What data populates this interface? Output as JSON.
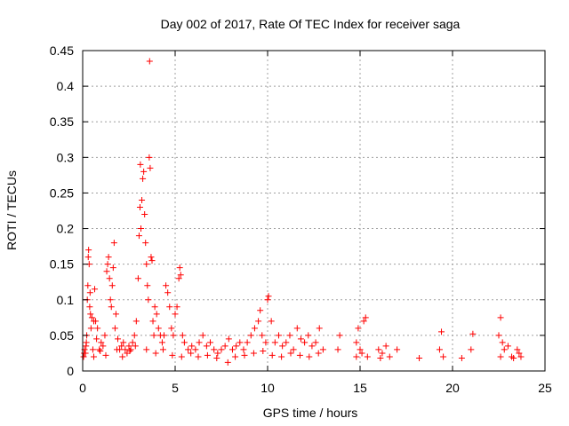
{
  "chart_data": {
    "type": "scatter",
    "title": "Day 002 of 2017, Rate Of TEC Index for receiver saga",
    "xlabel": "GPS time / hours",
    "ylabel": "ROTI / TECUs",
    "xlim": [
      0,
      25
    ],
    "ylim": [
      0,
      0.45
    ],
    "xticks": [
      0,
      5,
      10,
      15,
      20,
      25
    ],
    "yticks": [
      0,
      0.05,
      0.1,
      0.15,
      0.2,
      0.25,
      0.3,
      0.35,
      0.4,
      0.45
    ],
    "xtick_labels": [
      "0",
      "5",
      "10",
      "15",
      "20",
      "25"
    ],
    "ytick_labels": [
      "0",
      "0.05",
      "0.1",
      "0.15",
      "0.2",
      "0.25",
      "0.3",
      "0.35",
      "0.4",
      "0.45"
    ],
    "grid": true,
    "marker": "plus",
    "colors": {
      "series": "#ff0000",
      "grid": "#a0a0a0",
      "axes": "#000000"
    },
    "series": [
      {
        "values": [
          [
            0.05,
            0.02
          ],
          [
            0.1,
            0.03
          ],
          [
            0.15,
            0.025
          ],
          [
            0.2,
            0.04
          ],
          [
            0.22,
            0.05
          ],
          [
            0.25,
            0.1
          ],
          [
            0.28,
            0.12
          ],
          [
            0.3,
            0.16
          ],
          [
            0.32,
            0.17
          ],
          [
            0.35,
            0.15
          ],
          [
            0.38,
            0.09
          ],
          [
            0.4,
            0.11
          ],
          [
            0.42,
            0.08
          ],
          [
            0.45,
            0.06
          ],
          [
            0.5,
            0.075
          ],
          [
            0.55,
            0.03
          ],
          [
            0.6,
            0.07
          ],
          [
            0.65,
            0.115
          ],
          [
            0.7,
            0.07
          ],
          [
            0.75,
            0.045
          ],
          [
            0.8,
            0.06
          ],
          [
            0.9,
            0.03
          ],
          [
            1.0,
            0.04
          ],
          [
            1.1,
            0.035
          ],
          [
            1.2,
            0.05
          ],
          [
            1.3,
            0.14
          ],
          [
            1.35,
            0.15
          ],
          [
            1.4,
            0.16
          ],
          [
            1.45,
            0.13
          ],
          [
            1.5,
            0.1
          ],
          [
            1.55,
            0.09
          ],
          [
            1.6,
            0.12
          ],
          [
            1.65,
            0.145
          ],
          [
            1.7,
            0.18
          ],
          [
            1.75,
            0.06
          ],
          [
            1.8,
            0.08
          ],
          [
            1.9,
            0.045
          ],
          [
            2.0,
            0.03
          ],
          [
            2.1,
            0.035
          ],
          [
            2.2,
            0.04
          ],
          [
            2.3,
            0.03
          ],
          [
            2.4,
            0.025
          ],
          [
            2.5,
            0.035
          ],
          [
            2.6,
            0.03
          ],
          [
            2.7,
            0.04
          ],
          [
            2.8,
            0.05
          ],
          [
            2.9,
            0.07
          ],
          [
            3.0,
            0.13
          ],
          [
            3.05,
            0.19
          ],
          [
            3.1,
            0.23
          ],
          [
            3.12,
            0.29
          ],
          [
            3.15,
            0.2
          ],
          [
            3.2,
            0.24
          ],
          [
            3.25,
            0.27
          ],
          [
            3.3,
            0.28
          ],
          [
            3.35,
            0.22
          ],
          [
            3.4,
            0.18
          ],
          [
            3.45,
            0.15
          ],
          [
            3.5,
            0.12
          ],
          [
            3.55,
            0.1
          ],
          [
            3.6,
            0.3
          ],
          [
            3.62,
            0.435
          ],
          [
            3.65,
            0.285
          ],
          [
            3.7,
            0.16
          ],
          [
            3.75,
            0.155
          ],
          [
            3.8,
            0.07
          ],
          [
            3.85,
            0.05
          ],
          [
            3.9,
            0.09
          ],
          [
            4.0,
            0.08
          ],
          [
            4.1,
            0.06
          ],
          [
            4.2,
            0.05
          ],
          [
            4.3,
            0.04
          ],
          [
            4.4,
            0.05
          ],
          [
            4.5,
            0.12
          ],
          [
            4.6,
            0.11
          ],
          [
            4.7,
            0.09
          ],
          [
            4.8,
            0.06
          ],
          [
            4.9,
            0.05
          ],
          [
            5.0,
            0.08
          ],
          [
            5.1,
            0.09
          ],
          [
            5.2,
            0.13
          ],
          [
            5.25,
            0.145
          ],
          [
            5.3,
            0.135
          ],
          [
            5.4,
            0.05
          ],
          [
            5.5,
            0.04
          ],
          [
            5.7,
            0.03
          ],
          [
            5.9,
            0.035
          ],
          [
            6.1,
            0.03
          ],
          [
            6.3,
            0.04
          ],
          [
            6.5,
            0.05
          ],
          [
            6.7,
            0.035
          ],
          [
            6.9,
            0.04
          ],
          [
            7.1,
            0.03
          ],
          [
            7.3,
            0.025
          ],
          [
            7.5,
            0.03
          ],
          [
            7.7,
            0.035
          ],
          [
            7.9,
            0.045
          ],
          [
            8.1,
            0.03
          ],
          [
            8.3,
            0.035
          ],
          [
            8.5,
            0.04
          ],
          [
            8.7,
            0.03
          ],
          [
            8.9,
            0.04
          ],
          [
            9.1,
            0.05
          ],
          [
            9.3,
            0.06
          ],
          [
            9.5,
            0.07
          ],
          [
            9.6,
            0.085
          ],
          [
            9.7,
            0.05
          ],
          [
            9.9,
            0.04
          ],
          [
            10.0,
            0.1
          ],
          [
            10.05,
            0.105
          ],
          [
            10.2,
            0.07
          ],
          [
            10.4,
            0.04
          ],
          [
            10.6,
            0.05
          ],
          [
            10.8,
            0.035
          ],
          [
            11.0,
            0.04
          ],
          [
            11.2,
            0.05
          ],
          [
            11.4,
            0.03
          ],
          [
            11.6,
            0.06
          ],
          [
            11.8,
            0.045
          ],
          [
            12.0,
            0.04
          ],
          [
            12.2,
            0.05
          ],
          [
            12.4,
            0.035
          ],
          [
            12.6,
            0.04
          ],
          [
            12.8,
            0.06
          ],
          [
            13.0,
            0.03
          ],
          [
            13.8,
            0.03
          ],
          [
            13.9,
            0.05
          ],
          [
            14.8,
            0.04
          ],
          [
            14.9,
            0.06
          ],
          [
            15.0,
            0.03
          ],
          [
            15.2,
            0.07
          ],
          [
            15.3,
            0.075
          ],
          [
            15.4,
            0.02
          ],
          [
            16.0,
            0.03
          ],
          [
            16.2,
            0.025
          ],
          [
            16.4,
            0.035
          ],
          [
            16.6,
            0.02
          ],
          [
            17.0,
            0.03
          ],
          [
            18.2,
            0.018
          ],
          [
            19.3,
            0.03
          ],
          [
            19.4,
            0.055
          ],
          [
            19.5,
            0.02
          ],
          [
            20.5,
            0.018
          ],
          [
            21.0,
            0.03
          ],
          [
            21.1,
            0.052
          ],
          [
            22.5,
            0.05
          ],
          [
            22.6,
            0.075
          ],
          [
            22.7,
            0.04
          ],
          [
            22.8,
            0.03
          ],
          [
            23.0,
            0.035
          ],
          [
            23.2,
            0.02
          ],
          [
            23.5,
            0.03
          ],
          [
            23.6,
            0.025
          ],
          [
            23.7,
            0.02
          ],
          [
            0.08,
            0.025
          ],
          [
            0.18,
            0.035
          ],
          [
            0.6,
            0.02
          ],
          [
            0.95,
            0.028
          ],
          [
            1.25,
            0.022
          ],
          [
            1.85,
            0.03
          ],
          [
            2.15,
            0.02
          ],
          [
            2.55,
            0.028
          ],
          [
            2.85,
            0.035
          ],
          [
            3.45,
            0.03
          ],
          [
            3.95,
            0.025
          ],
          [
            4.35,
            0.03
          ],
          [
            4.85,
            0.022
          ],
          [
            5.35,
            0.02
          ],
          [
            5.85,
            0.025
          ],
          [
            6.25,
            0.02
          ],
          [
            6.75,
            0.022
          ],
          [
            7.25,
            0.018
          ],
          [
            7.85,
            0.012
          ],
          [
            8.25,
            0.02
          ],
          [
            8.75,
            0.022
          ],
          [
            9.25,
            0.025
          ],
          [
            9.75,
            0.028
          ],
          [
            10.25,
            0.022
          ],
          [
            10.75,
            0.02
          ],
          [
            11.25,
            0.025
          ],
          [
            11.75,
            0.022
          ],
          [
            12.25,
            0.02
          ],
          [
            12.75,
            0.025
          ],
          [
            14.8,
            0.02
          ],
          [
            15.1,
            0.025
          ],
          [
            16.1,
            0.018
          ],
          [
            22.6,
            0.02
          ],
          [
            23.3,
            0.018
          ]
        ]
      }
    ]
  }
}
